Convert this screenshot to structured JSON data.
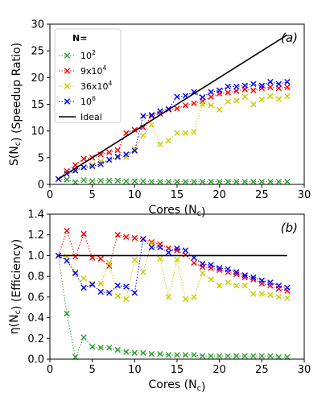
{
  "chart_data": [
    {
      "type": "line",
      "panel_label": "(a)",
      "xlabel": "Cores (N_c)",
      "ylabel": "S(N_c) (Speedup Ratio)",
      "xlim": [
        0,
        30
      ],
      "ylim": [
        0,
        30
      ],
      "xticks": [
        0,
        5,
        10,
        15,
        20,
        25,
        30
      ],
      "yticks": [
        0,
        5,
        10,
        15,
        20,
        25,
        30
      ],
      "legend": {
        "title": "N=",
        "placement": "top-left"
      },
      "x": [
        1,
        2,
        3,
        4,
        5,
        6,
        7,
        8,
        9,
        10,
        11,
        12,
        13,
        14,
        15,
        16,
        17,
        18,
        19,
        20,
        21,
        22,
        23,
        24,
        25,
        26,
        27,
        28
      ],
      "series": [
        {
          "name": "10^2",
          "color": "#2ca02c",
          "marker": "x",
          "linestyle": "dotted",
          "values": [
            1.0,
            0.9,
            0.4,
            0.8,
            0.6,
            0.7,
            0.7,
            0.7,
            0.6,
            0.6,
            0.6,
            0.5,
            0.5,
            0.5,
            0.5,
            0.5,
            0.5,
            0.5,
            0.5,
            0.5,
            0.5,
            0.5,
            0.5,
            0.5,
            0.5,
            0.5,
            0.5,
            0.5
          ]
        },
        {
          "name": "9x10^4",
          "color": "#ff0000",
          "marker": "x",
          "linestyle": "dotted",
          "values": [
            1.0,
            2.5,
            3.6,
            4.8,
            5.0,
            5.6,
            6.0,
            6.4,
            9.6,
            10.2,
            10.7,
            12.8,
            13.2,
            14.0,
            14.2,
            14.8,
            15.2,
            15.6,
            16.4,
            17.0,
            17.2,
            17.5,
            17.8,
            17.6,
            18.0,
            18.2,
            18.0,
            18.2
          ]
        },
        {
          "name": "36x10^4",
          "color": "#cccc00",
          "marker": "x",
          "linestyle": "dotted",
          "values": [
            1.0,
            2.0,
            2.5,
            3.2,
            3.6,
            4.3,
            4.6,
            5.0,
            5.1,
            6.6,
            9.2,
            11.2,
            7.5,
            8.2,
            9.6,
            9.6,
            9.8,
            15.0,
            14.8,
            14.0,
            15.5,
            15.7,
            16.4,
            15.0,
            15.9,
            16.5,
            16.0,
            16.5
          ]
        },
        {
          "name": "10^6",
          "color": "#0000ff",
          "marker": "x",
          "linestyle": "dotted",
          "values": [
            1.0,
            2.0,
            2.6,
            3.2,
            3.4,
            3.8,
            4.6,
            5.2,
            5.6,
            6.3,
            12.8,
            13.0,
            13.7,
            14.1,
            16.4,
            16.6,
            17.3,
            16.3,
            17.3,
            17.6,
            18.3,
            18.3,
            18.5,
            18.8,
            18.5,
            19.2,
            18.8,
            19.2
          ]
        },
        {
          "name": "Ideal",
          "color": "#000000",
          "marker": "none",
          "linestyle": "solid",
          "values": [
            1,
            2,
            3,
            4,
            5,
            6,
            7,
            8,
            9,
            10,
            11,
            12,
            13,
            14,
            15,
            16,
            17,
            18,
            19,
            20,
            21,
            22,
            23,
            24,
            25,
            26,
            27,
            28
          ]
        }
      ]
    },
    {
      "type": "line",
      "panel_label": "(b)",
      "xlabel": "Cores (N_c)",
      "ylabel": "η(N_c) (Efficiency)",
      "xlim": [
        0,
        30
      ],
      "ylim": [
        0,
        1.4
      ],
      "xticks": [
        0,
        5,
        10,
        15,
        20,
        25,
        30
      ],
      "yticks": [
        0.0,
        0.2,
        0.4,
        0.6,
        0.8,
        1.0,
        1.2,
        1.4
      ],
      "x": [
        1,
        2,
        3,
        4,
        5,
        6,
        7,
        8,
        9,
        10,
        11,
        12,
        13,
        14,
        15,
        16,
        17,
        18,
        19,
        20,
        21,
        22,
        23,
        24,
        25,
        26,
        27,
        28
      ],
      "series": [
        {
          "name": "10^2",
          "color": "#2ca02c",
          "marker": "x",
          "linestyle": "dotted",
          "values": [
            1.0,
            0.44,
            0.02,
            0.21,
            0.12,
            0.11,
            0.11,
            0.09,
            0.07,
            0.06,
            0.06,
            0.05,
            0.05,
            0.04,
            0.04,
            0.04,
            0.04,
            0.03,
            0.03,
            0.03,
            0.03,
            0.03,
            0.03,
            0.03,
            0.03,
            0.03,
            0.02,
            0.02
          ]
        },
        {
          "name": "9x10^4",
          "color": "#ff0000",
          "marker": "x",
          "linestyle": "dotted",
          "values": [
            1.0,
            1.24,
            0.99,
            1.21,
            0.98,
            0.97,
            0.9,
            1.2,
            1.18,
            1.17,
            1.16,
            1.13,
            1.11,
            1.07,
            1.05,
            1.01,
            0.93,
            0.89,
            0.88,
            0.86,
            0.84,
            0.82,
            0.79,
            0.77,
            0.73,
            0.71,
            0.68,
            0.66
          ]
        },
        {
          "name": "36x10^4",
          "color": "#cccc00",
          "marker": "x",
          "linestyle": "dotted",
          "values": [
            1.0,
            0.99,
            0.84,
            0.78,
            0.73,
            0.73,
            0.93,
            0.61,
            0.58,
            0.96,
            0.84,
            1.12,
            0.97,
            0.6,
            0.96,
            0.58,
            0.6,
            0.83,
            0.77,
            0.71,
            0.74,
            0.71,
            0.71,
            0.63,
            0.63,
            0.62,
            0.6,
            0.59
          ]
        },
        {
          "name": "10^6",
          "color": "#0000ff",
          "marker": "x",
          "linestyle": "dotted",
          "values": [
            1.0,
            0.95,
            0.83,
            0.69,
            0.72,
            0.65,
            0.64,
            0.71,
            0.7,
            0.64,
            1.16,
            1.08,
            1.08,
            1.03,
            1.07,
            1.05,
            0.98,
            0.92,
            0.91,
            0.88,
            0.87,
            0.84,
            0.81,
            0.79,
            0.76,
            0.74,
            0.71,
            0.69
          ]
        },
        {
          "name": "Ideal",
          "color": "#000000",
          "marker": "none",
          "linestyle": "solid",
          "values": [
            1,
            1,
            1,
            1,
            1,
            1,
            1,
            1,
            1,
            1,
            1,
            1,
            1,
            1,
            1,
            1,
            1,
            1,
            1,
            1,
            1,
            1,
            1,
            1,
            1,
            1,
            1,
            1
          ]
        }
      ]
    }
  ]
}
